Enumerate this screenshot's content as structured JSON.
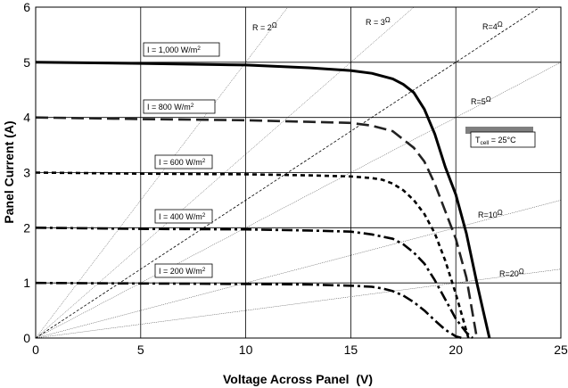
{
  "chart_data": {
    "type": "line",
    "title": "",
    "xlabel": "Voltage Across Panel  (V)",
    "ylabel": "Panel Current (A)",
    "xlim": [
      0,
      25
    ],
    "ylim": [
      0,
      6
    ],
    "x_ticks": [
      "0",
      "5",
      "10",
      "15",
      "20",
      "25"
    ],
    "y_ticks": [
      "0",
      "1",
      "2",
      "3",
      "4",
      "5",
      "6"
    ],
    "grid": true,
    "legend": "none",
    "annotation": {
      "prefix": "T",
      "sub": "cell",
      "suffix": " = 25°C"
    },
    "series": [
      {
        "name": "1,000",
        "label": {
          "prefix": "I = ",
          "value": "1,000",
          "unit": " W/m",
          "sup": "2"
        },
        "style": "solid",
        "x": [
          0,
          5,
          10,
          13,
          15,
          16,
          17,
          17.5,
          18,
          18.5,
          19,
          19.5,
          20,
          20.5,
          21,
          21.3,
          21.6
        ],
        "y": [
          5.0,
          4.98,
          4.95,
          4.9,
          4.85,
          4.8,
          4.7,
          4.6,
          4.45,
          4.15,
          3.7,
          3.1,
          2.6,
          1.9,
          1.0,
          0.5,
          0.0
        ]
      },
      {
        "name": "800",
        "label": {
          "prefix": "I = ",
          "value": "800",
          "unit": " W/m",
          "sup": "2"
        },
        "style": "dash",
        "x": [
          0,
          5,
          10,
          13,
          15,
          16,
          17,
          17.5,
          18,
          18.5,
          19,
          19.5,
          20,
          20.5,
          21
        ],
        "y": [
          4.0,
          3.97,
          3.95,
          3.92,
          3.9,
          3.85,
          3.75,
          3.6,
          3.45,
          3.2,
          2.8,
          2.3,
          1.8,
          1.1,
          0.0
        ]
      },
      {
        "name": "600",
        "label": {
          "prefix": "I = ",
          "value": "600",
          "unit": " W/m",
          "sup": "2"
        },
        "style": "short-dash",
        "x": [
          0,
          5,
          10,
          13,
          15,
          16,
          16.5,
          17,
          17.5,
          18,
          18.5,
          19,
          19.5,
          20,
          20.3,
          20.6
        ],
        "y": [
          3.0,
          2.98,
          2.97,
          2.95,
          2.93,
          2.9,
          2.87,
          2.8,
          2.68,
          2.5,
          2.25,
          1.9,
          1.4,
          0.8,
          0.4,
          0.0
        ]
      },
      {
        "name": "400",
        "label": {
          "prefix": "I = ",
          "value": "400",
          "unit": " W/m",
          "sup": "2"
        },
        "style": "dash-dot",
        "x": [
          0,
          5,
          10,
          13,
          15,
          16,
          17,
          17.5,
          18,
          18.5,
          19,
          19.5,
          20,
          20.5,
          20.8
        ],
        "y": [
          2.0,
          1.98,
          1.97,
          1.95,
          1.93,
          1.88,
          1.8,
          1.7,
          1.55,
          1.35,
          1.05,
          0.7,
          0.35,
          0.1,
          0.0
        ]
      },
      {
        "name": "200",
        "label": {
          "prefix": "I = ",
          "value": "200",
          "unit": " W/m",
          "sup": "2"
        },
        "style": "dash-dot",
        "x": [
          0,
          5,
          10,
          13,
          15,
          16,
          16.5,
          17,
          17.5,
          18,
          18.5,
          19,
          19.5,
          20,
          20.3
        ],
        "y": [
          1.0,
          0.99,
          0.98,
          0.97,
          0.95,
          0.93,
          0.9,
          0.85,
          0.77,
          0.65,
          0.5,
          0.32,
          0.15,
          0.03,
          0.0
        ]
      }
    ],
    "load_lines": [
      {
        "label": "R = 2",
        "unit": "Ω",
        "r": 2,
        "style": "dotted"
      },
      {
        "label": "R = 3",
        "unit": "Ω",
        "r": 3,
        "style": "dotted"
      },
      {
        "label": "R=4",
        "unit": "Ω",
        "r": 4,
        "style": "dashed"
      },
      {
        "label": "R=5",
        "unit": "Ω",
        "r": 5,
        "style": "dotted"
      },
      {
        "label": "R=10",
        "unit": "Ω",
        "r": 10,
        "style": "dotted"
      },
      {
        "label": "R=20",
        "unit": "Ω",
        "r": 20,
        "style": "dotted"
      }
    ]
  }
}
